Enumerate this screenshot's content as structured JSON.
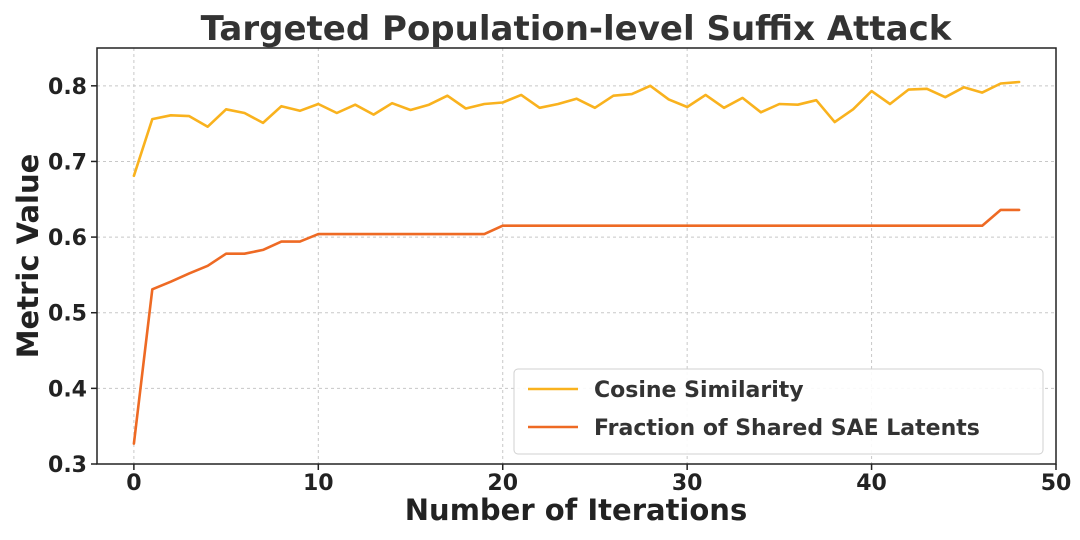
{
  "chart_data": {
    "type": "line",
    "title": "Targeted Population-level Suffix Attack",
    "xlabel": "Number of Iterations",
    "ylabel": "Metric Value",
    "xlim": [
      -2,
      50
    ],
    "ylim": [
      0.3,
      0.85
    ],
    "xticks": [
      0,
      10,
      20,
      30,
      40,
      50
    ],
    "yticks": [
      0.3,
      0.4,
      0.5,
      0.6,
      0.7,
      0.8
    ],
    "grid": true,
    "legend_position": "bottom-right",
    "x": [
      0,
      1,
      2,
      3,
      4,
      5,
      6,
      7,
      8,
      9,
      10,
      11,
      12,
      13,
      14,
      15,
      16,
      17,
      18,
      19,
      20,
      21,
      22,
      23,
      24,
      25,
      26,
      27,
      28,
      29,
      30,
      31,
      32,
      33,
      34,
      35,
      36,
      37,
      38,
      39,
      40,
      41,
      42,
      43,
      44,
      45,
      46,
      47,
      48
    ],
    "series": [
      {
        "name": "Cosine Similarity",
        "color": "#f9b21e",
        "values": [
          0.681,
          0.756,
          0.761,
          0.76,
          0.746,
          0.769,
          0.764,
          0.751,
          0.773,
          0.767,
          0.776,
          0.764,
          0.775,
          0.762,
          0.777,
          0.768,
          0.775,
          0.787,
          0.77,
          0.776,
          0.778,
          0.788,
          0.771,
          0.776,
          0.783,
          0.771,
          0.787,
          0.789,
          0.8,
          0.782,
          0.772,
          0.788,
          0.771,
          0.784,
          0.765,
          0.776,
          0.775,
          0.781,
          0.752,
          0.769,
          0.793,
          0.776,
          0.795,
          0.796,
          0.785,
          0.798,
          0.791,
          0.803,
          0.805
        ]
      },
      {
        "name": "Fraction of Shared SAE Latents",
        "color": "#ee6a24",
        "values": [
          0.327,
          0.531,
          0.541,
          0.552,
          0.562,
          0.578,
          0.578,
          0.583,
          0.594,
          0.594,
          0.604,
          0.604,
          0.604,
          0.604,
          0.604,
          0.604,
          0.604,
          0.604,
          0.604,
          0.604,
          0.615,
          0.615,
          0.615,
          0.615,
          0.615,
          0.615,
          0.615,
          0.615,
          0.615,
          0.615,
          0.615,
          0.615,
          0.615,
          0.615,
          0.615,
          0.615,
          0.615,
          0.615,
          0.615,
          0.615,
          0.615,
          0.615,
          0.615,
          0.615,
          0.615,
          0.615,
          0.615,
          0.636,
          0.636
        ]
      }
    ]
  }
}
